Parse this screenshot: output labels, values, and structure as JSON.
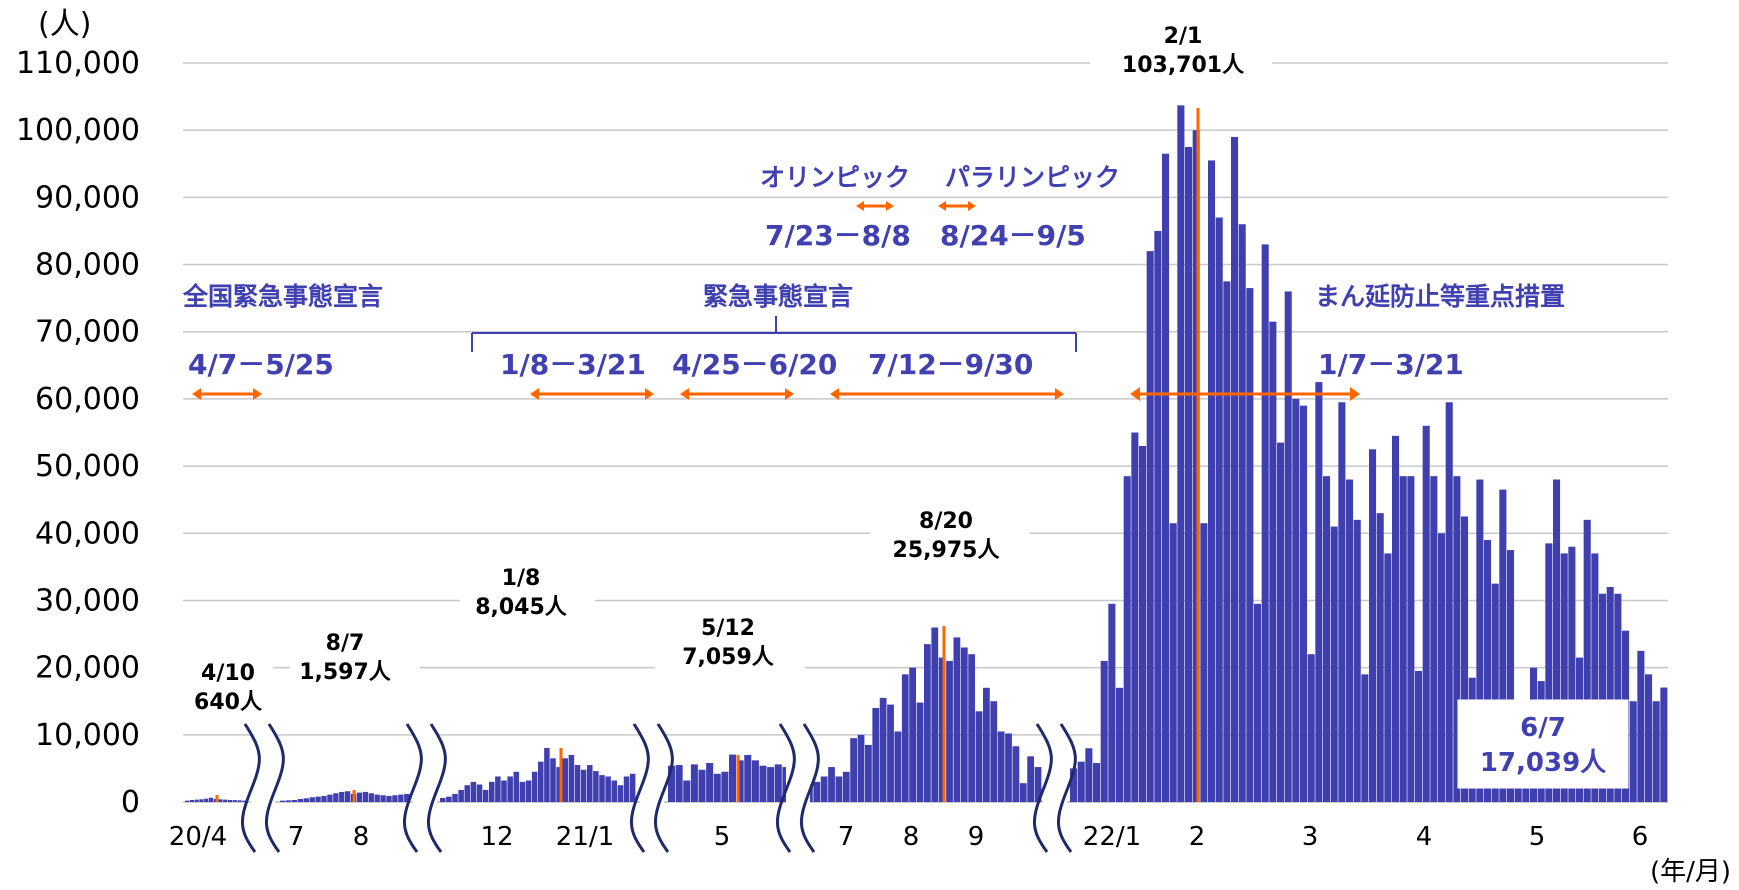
{
  "chart_data": {
    "type": "bar",
    "y_unit": "(人)",
    "x_unit": "(年/月)",
    "ylim": [
      0,
      110000
    ],
    "yticks": [
      "110,000",
      "100,000",
      "90,000",
      "80,000",
      "70,000",
      "60,000",
      "50,000",
      "40,000",
      "30,000",
      "20,000",
      "10,000",
      "0"
    ],
    "xticks": [
      "20/4",
      "7",
      "8",
      "12",
      "21/1",
      "5",
      "7",
      "8",
      "9",
      "22/1",
      "2",
      "3",
      "4",
      "5",
      "6"
    ],
    "grid": true,
    "bar_color": "#3f3faf",
    "marker_color": "#ff6600",
    "segments": [
      {
        "values": [
          200,
          300,
          350,
          400,
          500,
          640,
          450,
          400,
          350,
          300,
          280,
          250,
          200
        ]
      },
      {
        "values": [
          200,
          250,
          300,
          450,
          550,
          700,
          800,
          900,
          1100,
          1300,
          1500,
          1597,
          1200,
          1400,
          1500,
          1300,
          1100,
          1000,
          900,
          1000,
          1100,
          1200
        ]
      },
      {
        "values": [
          600,
          800,
          1200,
          1800,
          2500,
          3000,
          2600,
          1800,
          3000,
          3800,
          3200,
          3800,
          4500,
          3000,
          3200,
          4500,
          6000,
          8045,
          6500,
          5200,
          6500,
          7000,
          5500,
          4800,
          5500,
          4600,
          4000,
          3800,
          3200,
          2500,
          3800,
          4200
        ]
      },
      {
        "values": [
          5400,
          5500,
          3200,
          5600,
          4800,
          5800,
          4200,
          4500,
          7059,
          6200,
          7000,
          6200,
          5400,
          5200,
          5600,
          5200
        ]
      },
      {
        "values": [
          2600,
          3000,
          3800,
          5200,
          3800,
          4500,
          9500,
          10000,
          8500,
          14000,
          15500,
          14500,
          10500,
          19000,
          20000,
          14800,
          23500,
          25975,
          21500,
          21000,
          24500,
          23000,
          22000,
          13500,
          17000,
          15000,
          10500,
          10200,
          8300,
          2800,
          6800,
          5200
        ]
      },
      {
        "values": [
          5000,
          6000,
          8000,
          5800,
          21000,
          29500,
          17000,
          48500,
          55000,
          53000,
          82000,
          85000,
          96500,
          41500,
          103701,
          97500,
          100000,
          41500,
          95500,
          87000,
          77500,
          99000,
          86000,
          76500,
          29500,
          83000,
          71500,
          53500,
          76000,
          60000,
          59000,
          22000,
          62500,
          48500,
          41000,
          59500,
          48000,
          42000,
          19000,
          52500,
          43000,
          37000,
          54500,
          48500,
          48500,
          19500,
          56000,
          48500,
          40000,
          59500,
          48500,
          42500,
          18500,
          48000,
          39000,
          32500,
          46500,
          37500,
          15000,
          15000,
          20000,
          18000,
          38500,
          48000,
          37000,
          38000,
          21500,
          42000,
          37000,
          31000,
          32000,
          31000,
          25500,
          15000,
          22500,
          19000,
          15000,
          17039
        ]
      }
    ],
    "peaks": [
      {
        "date": "4/10",
        "value_label": "640人"
      },
      {
        "date": "8/7",
        "value_label": "1,597人"
      },
      {
        "date": "1/8",
        "value_label": "8,045人"
      },
      {
        "date": "5/12",
        "value_label": "7,059人"
      },
      {
        "date": "8/20",
        "value_label": "25,975人"
      },
      {
        "date": "2/1",
        "value_label": "103,701人"
      }
    ],
    "latest": {
      "date": "6/7",
      "value_label": "17,039人"
    },
    "annotations": {
      "national_emergency": {
        "title": "全国緊急事態宣言",
        "period": "4/7－5/25"
      },
      "emergency": {
        "title": "緊急事態宣言",
        "periods": [
          "1/8－3/21",
          "4/25－6/20",
          "7/12－9/30"
        ]
      },
      "olympics": {
        "title": "オリンピック",
        "period": "7/23－8/8"
      },
      "paralympics": {
        "title": "パラリンピック",
        "period": "8/24－9/5"
      },
      "priority_measures": {
        "title": "まん延防止等重点措置",
        "period": "1/7－3/21"
      }
    }
  }
}
